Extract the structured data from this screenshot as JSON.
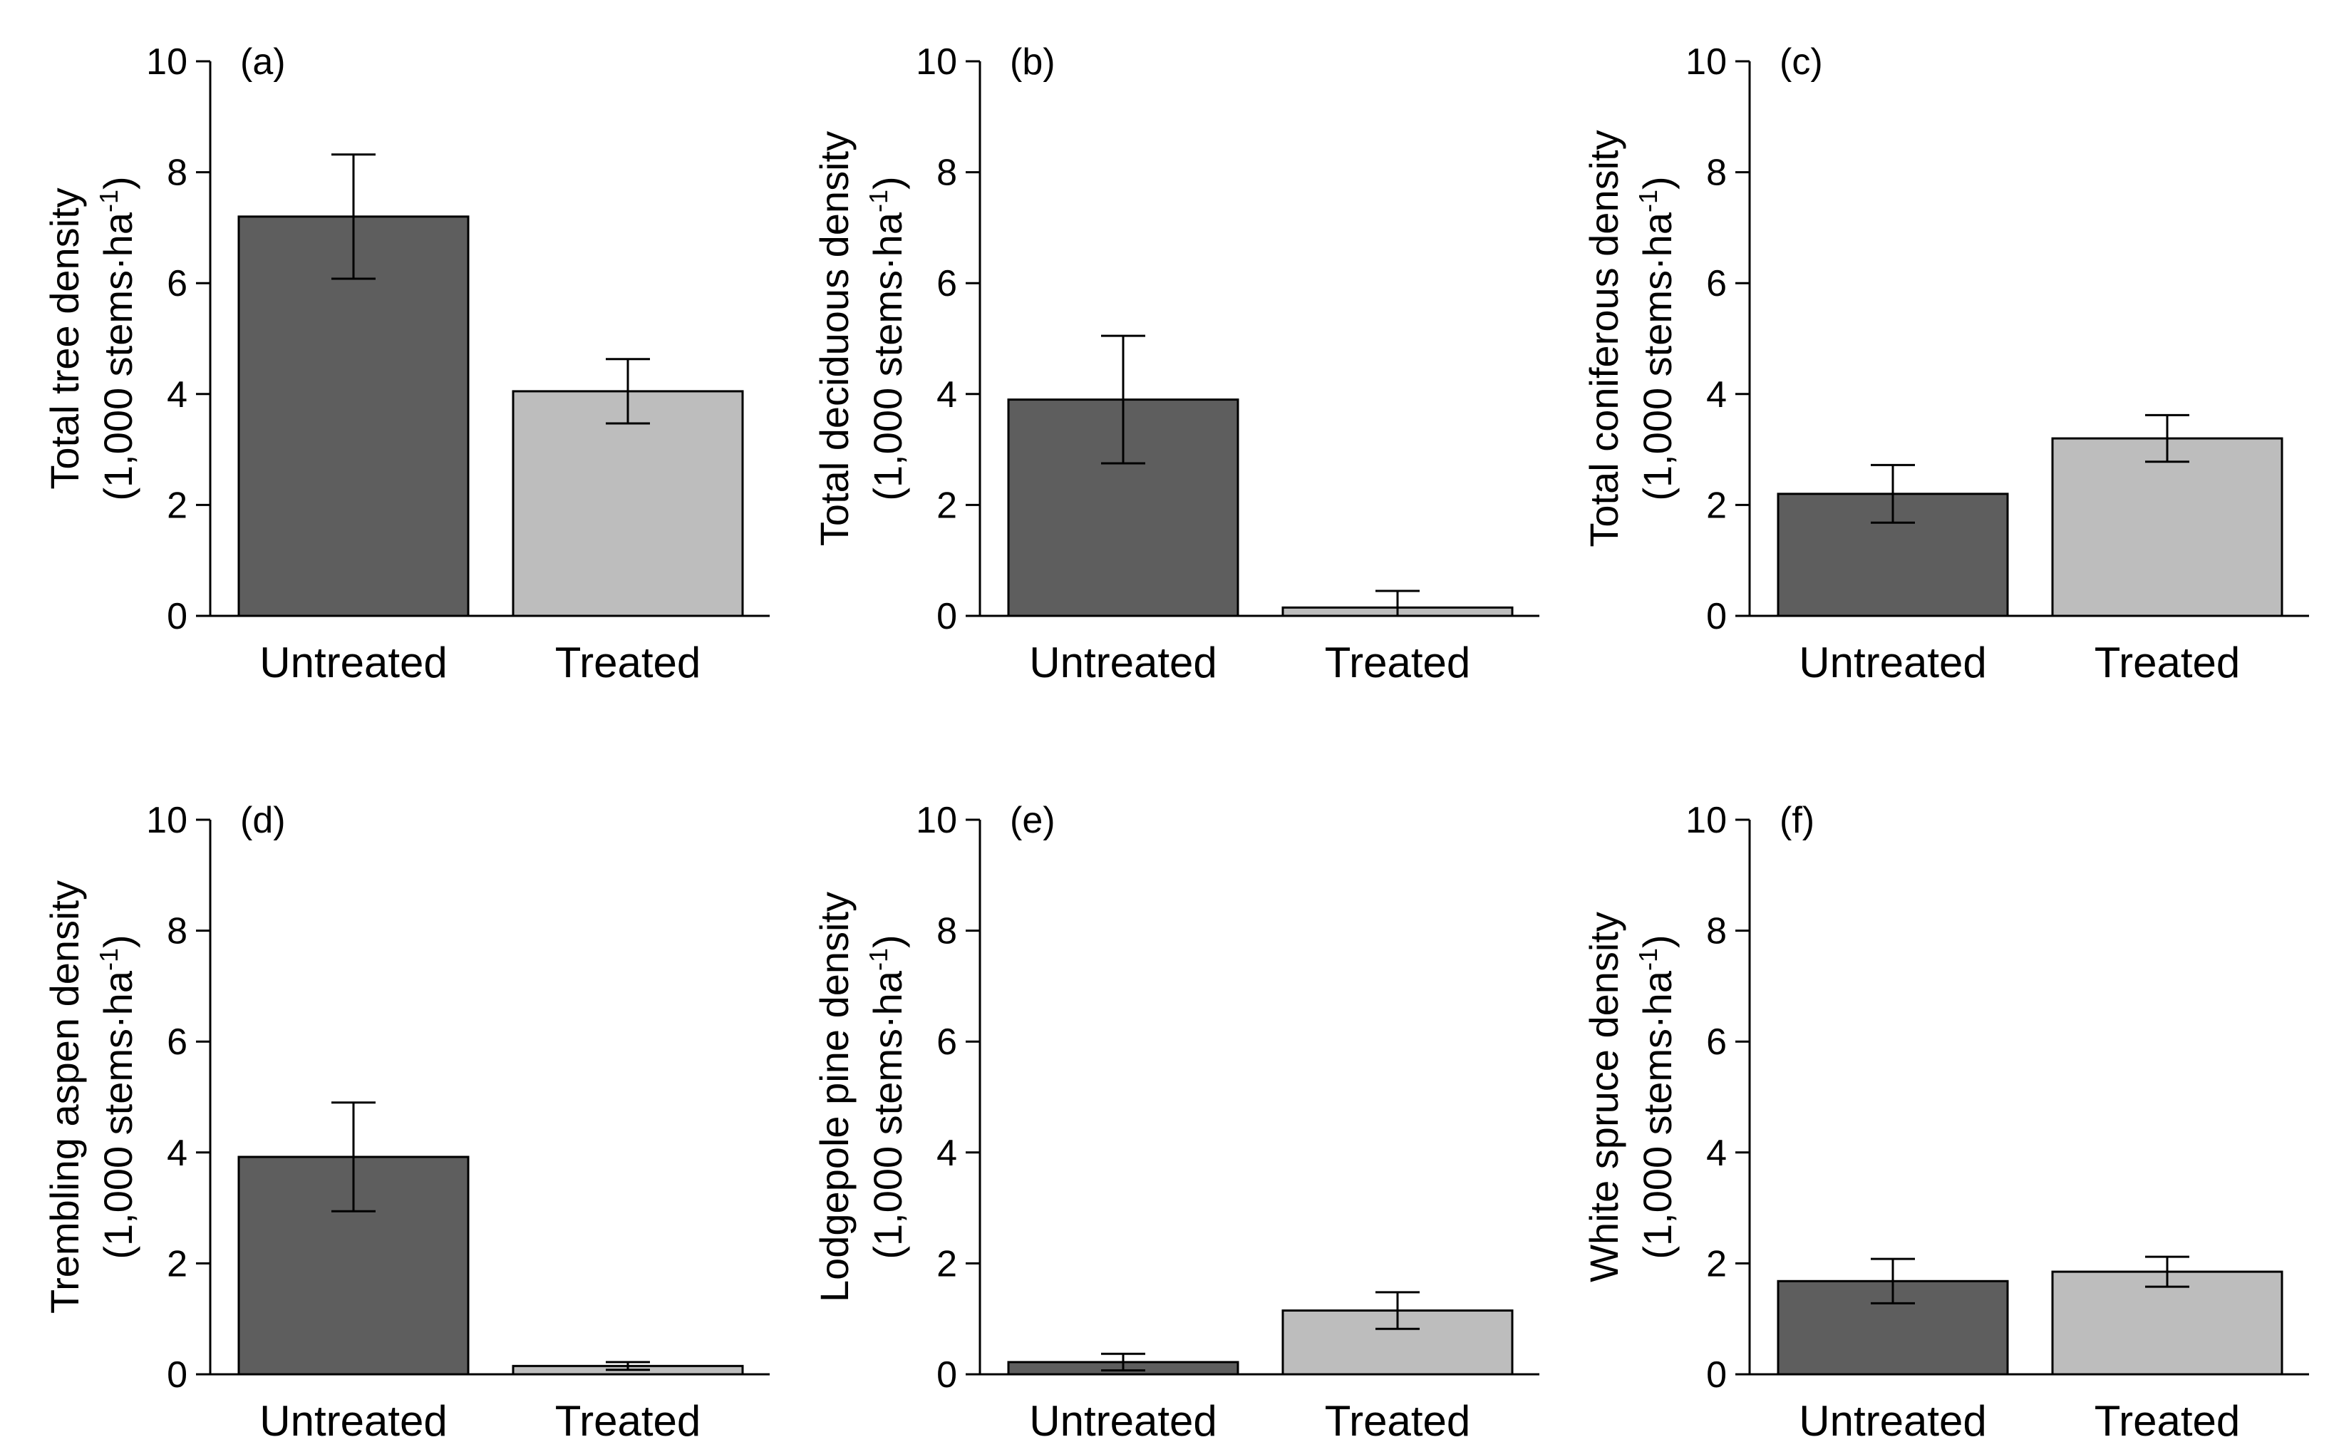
{
  "chart_data": [
    {
      "type": "bar",
      "panel_label": "(a)",
      "categories": [
        "Untreated",
        "Treated"
      ],
      "values": [
        7.2,
        4.05
      ],
      "error": [
        1.12,
        0.58
      ],
      "ylabel_line1": "Total tree density",
      "ylabel_line2_prefix": "(1,000 stems·ha",
      "ylabel_sup": "-1",
      "ylabel_line2_suffix": ")",
      "ylim": [
        0,
        10
      ],
      "yticks": [
        "0",
        "2",
        "4",
        "6",
        "8",
        "10"
      ],
      "colors": [
        "#5e5e5e",
        "#bdbdbd"
      ]
    },
    {
      "type": "bar",
      "panel_label": "(b)",
      "categories": [
        "Untreated",
        "Treated"
      ],
      "values": [
        3.9,
        0.15
      ],
      "error": [
        1.15,
        0.3
      ],
      "ylabel_line1": "Total deciduous density",
      "ylabel_line2_prefix": "(1,000 stems·ha",
      "ylabel_sup": "-1",
      "ylabel_line2_suffix": ")",
      "ylim": [
        0,
        10
      ],
      "yticks": [
        "0",
        "2",
        "4",
        "6",
        "8",
        "10"
      ],
      "colors": [
        "#5e5e5e",
        "#bdbdbd"
      ]
    },
    {
      "type": "bar",
      "panel_label": "(c)",
      "categories": [
        "Untreated",
        "Treated"
      ],
      "values": [
        2.2,
        3.2
      ],
      "error": [
        0.52,
        0.42
      ],
      "ylabel_line1": "Total coniferous density",
      "ylabel_line2_prefix": "(1,000 stems·ha",
      "ylabel_sup": "-1",
      "ylabel_line2_suffix": ")",
      "ylim": [
        0,
        10
      ],
      "yticks": [
        "0",
        "2",
        "4",
        "6",
        "8",
        "10"
      ],
      "colors": [
        "#5e5e5e",
        "#bdbdbd"
      ]
    },
    {
      "type": "bar",
      "panel_label": "(d)",
      "categories": [
        "Untreated",
        "Treated"
      ],
      "values": [
        3.92,
        0.15
      ],
      "error": [
        0.98,
        0.07
      ],
      "ylabel_line1": "Trembling aspen density",
      "ylabel_line2_prefix": "(1,000 stems·ha",
      "ylabel_sup": "-1",
      "ylabel_line2_suffix": ")",
      "ylim": [
        0,
        10
      ],
      "yticks": [
        "0",
        "2",
        "4",
        "6",
        "8",
        "10"
      ],
      "colors": [
        "#5e5e5e",
        "#bdbdbd"
      ]
    },
    {
      "type": "bar",
      "panel_label": "(e)",
      "categories": [
        "Untreated",
        "Treated"
      ],
      "values": [
        0.22,
        1.15
      ],
      "error": [
        0.15,
        0.33
      ],
      "ylabel_line1": "Lodgepole pine density",
      "ylabel_line2_prefix": "(1,000 stems·ha",
      "ylabel_sup": "-1",
      "ylabel_line2_suffix": ")",
      "ylim": [
        0,
        10
      ],
      "yticks": [
        "0",
        "2",
        "4",
        "6",
        "8",
        "10"
      ],
      "colors": [
        "#5e5e5e",
        "#bdbdbd"
      ]
    },
    {
      "type": "bar",
      "panel_label": "(f)",
      "categories": [
        "Untreated",
        "Treated"
      ],
      "values": [
        1.68,
        1.85
      ],
      "error": [
        0.4,
        0.27
      ],
      "ylabel_line1": "White spruce density",
      "ylabel_line2_prefix": "(1,000 stems·ha",
      "ylabel_sup": "-1",
      "ylabel_line2_suffix": ")",
      "ylim": [
        0,
        10
      ],
      "yticks": [
        "0",
        "2",
        "4",
        "6",
        "8",
        "10"
      ],
      "colors": [
        "#5e5e5e",
        "#bdbdbd"
      ]
    }
  ]
}
